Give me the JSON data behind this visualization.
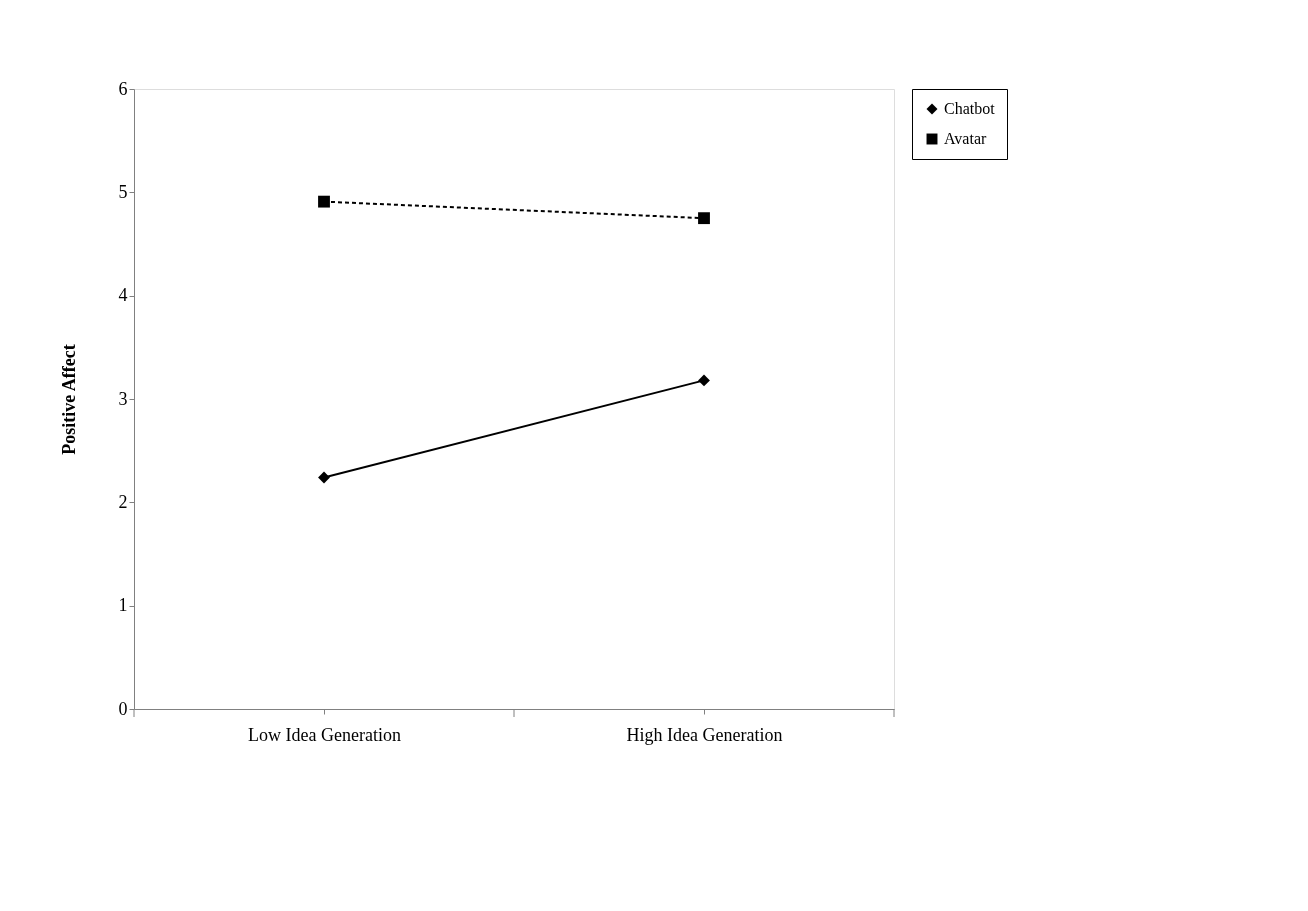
{
  "chart_data": {
    "type": "line",
    "ylabel": "Positive Affect",
    "categories": [
      "Low Idea Generation",
      "High Idea Generation"
    ],
    "series": [
      {
        "name": "Chatbot",
        "color": "#000000",
        "values": [
          2.24,
          3.18
        ],
        "marker": "diamond",
        "line_style": "solid"
      },
      {
        "name": "Avatar",
        "color": "#000000",
        "values": [
          4.91,
          4.75
        ],
        "marker": "square",
        "line_style": "dashed"
      }
    ],
    "ylim": [
      0,
      6
    ],
    "yticks": [
      0,
      1,
      2,
      3,
      4,
      5,
      6
    ],
    "grid": false,
    "legend": "right"
  }
}
